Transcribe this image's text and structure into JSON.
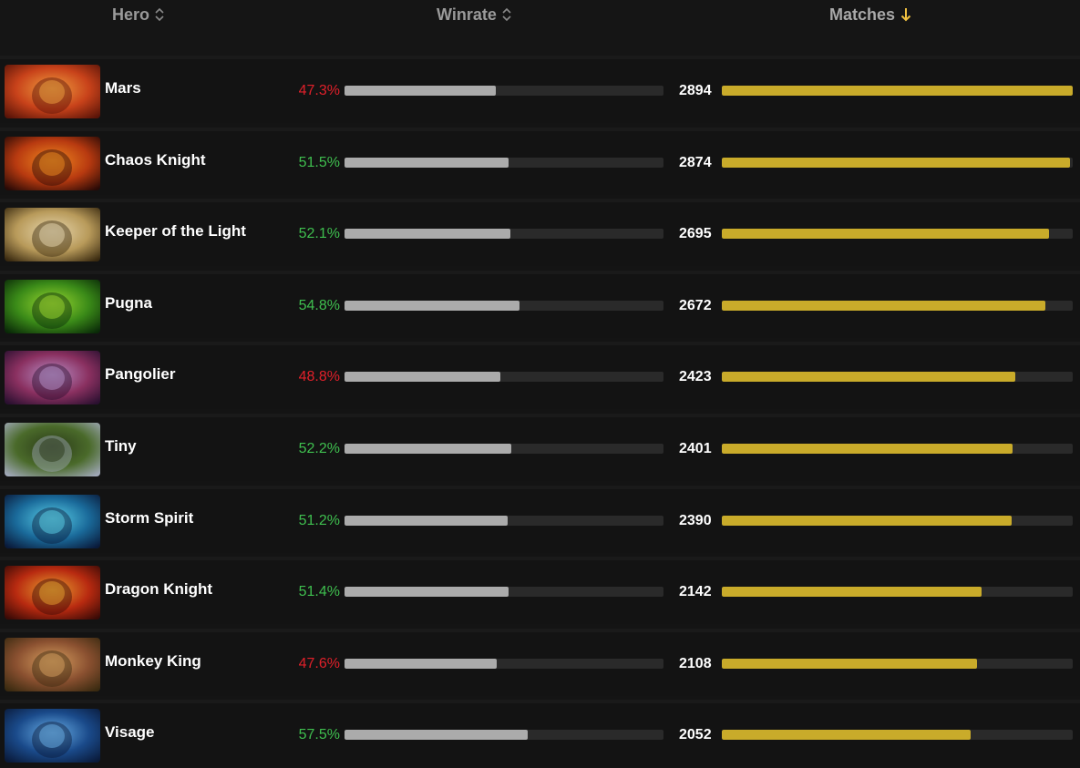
{
  "header": {
    "hero_label": "Hero",
    "winrate_label": "Winrate",
    "matches_label": "Matches"
  },
  "colors": {
    "positive": "#3fbf4f",
    "negative": "#e0202a",
    "winrate_bar": "#ababab",
    "matches_bar": "#c9ab2a",
    "sort_active": "#f0c040"
  },
  "max_matches": 2894,
  "rows": [
    {
      "hero": "Mars",
      "winrate": "47.3%",
      "winrate_value": 47.3,
      "matches": "2894",
      "matches_value": 2894,
      "trend": "neg",
      "portrait": [
        "#5a1408",
        "#c8421a",
        "#f0a040"
      ]
    },
    {
      "hero": "Chaos Knight",
      "winrate": "51.5%",
      "winrate_value": 51.5,
      "matches": "2874",
      "matches_value": 2874,
      "trend": "pos",
      "portrait": [
        "#2a0a06",
        "#b83a10",
        "#f08a20"
      ]
    },
    {
      "hero": "Keeper of the Light",
      "winrate": "52.1%",
      "winrate_value": 52.1,
      "matches": "2695",
      "matches_value": 2695,
      "trend": "pos",
      "portrait": [
        "#3a2a10",
        "#b89a5a",
        "#e8d8b0"
      ]
    },
    {
      "hero": "Pugna",
      "winrate": "54.8%",
      "winrate_value": 54.8,
      "matches": "2672",
      "matches_value": 2672,
      "trend": "pos",
      "portrait": [
        "#0a2a08",
        "#3a8a18",
        "#9ad830"
      ]
    },
    {
      "hero": "Pangolier",
      "winrate": "48.8%",
      "winrate_value": 48.8,
      "matches": "2423",
      "matches_value": 2423,
      "trend": "neg",
      "portrait": [
        "#2a1030",
        "#8a3060",
        "#b890c8"
      ]
    },
    {
      "hero": "Tiny",
      "winrate": "52.2%",
      "winrate_value": 52.2,
      "matches": "2401",
      "matches_value": 2401,
      "trend": "pos",
      "portrait": [
        "#a0a8b8",
        "#4a6a2a",
        "#2a3a18"
      ]
    },
    {
      "hero": "Storm Spirit",
      "winrate": "51.2%",
      "winrate_value": 51.2,
      "matches": "2390",
      "matches_value": 2390,
      "trend": "pos",
      "portrait": [
        "#0a1a3a",
        "#1a6a9a",
        "#5ad0e8"
      ]
    },
    {
      "hero": "Dragon Knight",
      "winrate": "51.4%",
      "winrate_value": 51.4,
      "matches": "2142",
      "matches_value": 2142,
      "trend": "pos",
      "portrait": [
        "#3a0a06",
        "#b82a10",
        "#e8a030"
      ]
    },
    {
      "hero": "Monkey King",
      "winrate": "47.6%",
      "winrate_value": 47.6,
      "matches": "2108",
      "matches_value": 2108,
      "trend": "neg",
      "portrait": [
        "#3a2a10",
        "#8a5030",
        "#d8a060"
      ]
    },
    {
      "hero": "Visage",
      "winrate": "57.5%",
      "winrate_value": 57.5,
      "matches": "2052",
      "matches_value": 2052,
      "trend": "pos",
      "portrait": [
        "#0a1a3a",
        "#1a4a8a",
        "#6ab0e8"
      ]
    }
  ]
}
